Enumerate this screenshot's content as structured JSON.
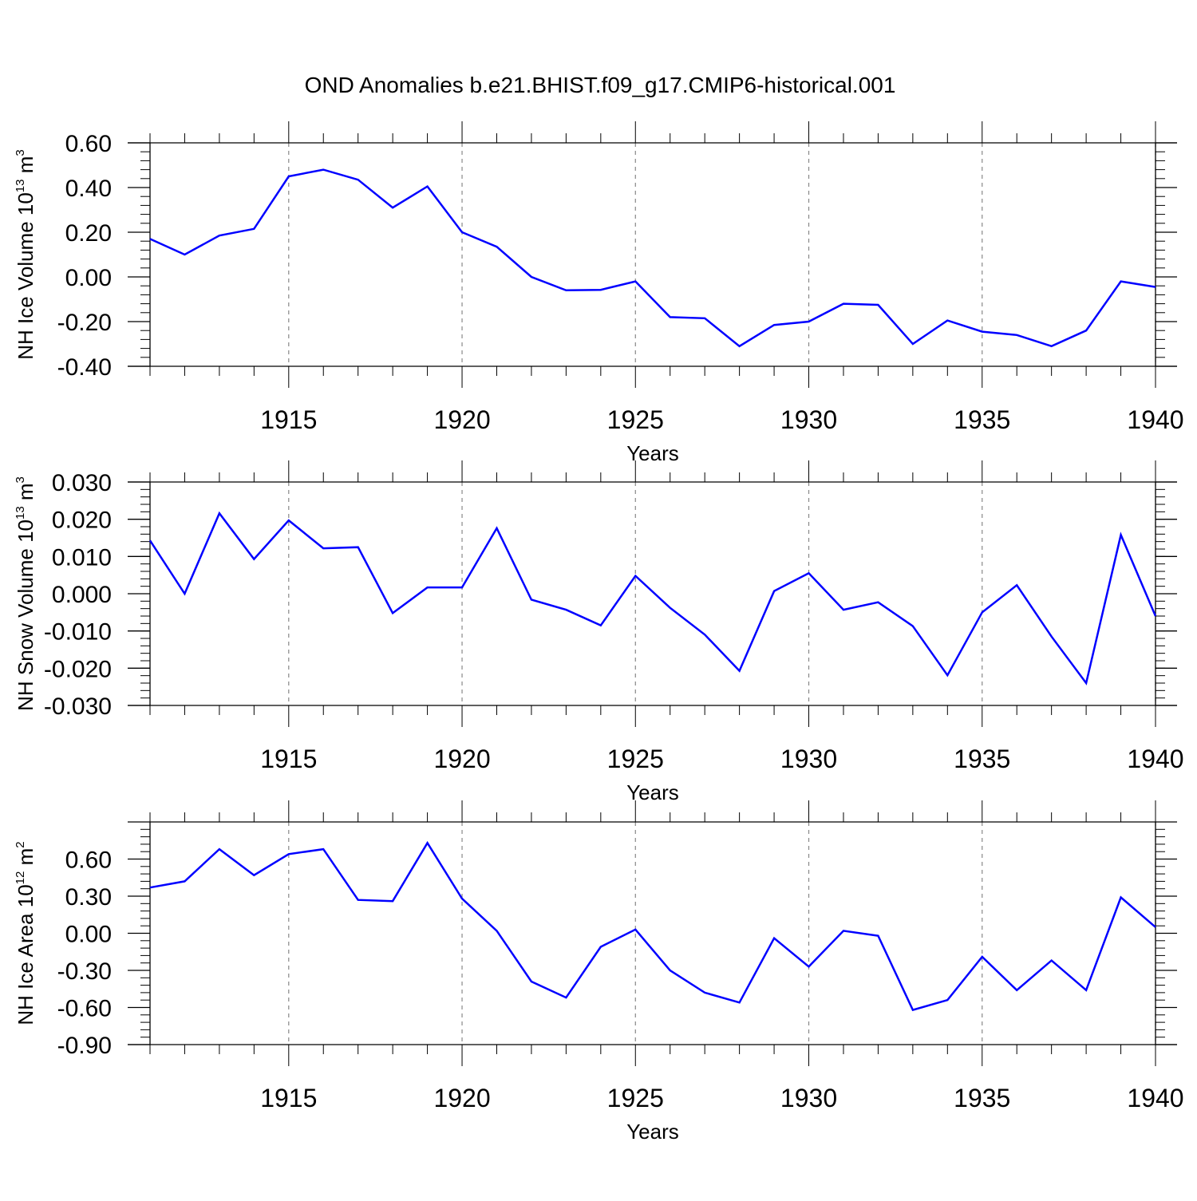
{
  "title": "OND Anomalies b.e21.BHIST.f09_g17.CMIP6-historical.001",
  "colors": {
    "series_line": "#0000ff",
    "axes": "#000000",
    "grid": "#888888"
  },
  "chart_data": [
    {
      "type": "line",
      "ylabel_prefix": "NH Ice Volume 10",
      "ylabel_exp": "13",
      "ylabel_unit": " m",
      "ylabel_unit_exp": "3",
      "xlabel": "Years",
      "xlim": [
        1911,
        1940
      ],
      "ylim": [
        -0.4,
        0.6
      ],
      "yticks": [
        "0.60",
        "0.40",
        "0.20",
        "0.00",
        "-0.20",
        "-0.40"
      ],
      "ytick_values": [
        0.6,
        0.4,
        0.2,
        0.0,
        -0.2,
        -0.4
      ],
      "xticks": [
        "1915",
        "1920",
        "1925",
        "1930",
        "1935",
        "1940"
      ],
      "xtick_values": [
        1915,
        1920,
        1925,
        1930,
        1935,
        1940
      ],
      "grid": "vertical dashed at labeled years",
      "x": [
        1911,
        1912,
        1913,
        1914,
        1915,
        1916,
        1917,
        1918,
        1919,
        1920,
        1921,
        1922,
        1923,
        1924,
        1925,
        1926,
        1927,
        1928,
        1929,
        1930,
        1931,
        1932,
        1933,
        1934,
        1935,
        1936,
        1937,
        1938,
        1939,
        1940
      ],
      "values": [
        0.17,
        0.1,
        0.185,
        0.215,
        0.45,
        0.48,
        0.435,
        0.31,
        0.405,
        0.2,
        0.135,
        0.0,
        -0.06,
        -0.058,
        -0.02,
        -0.18,
        -0.185,
        -0.31,
        -0.215,
        -0.2,
        -0.12,
        -0.125,
        -0.3,
        -0.195,
        -0.245,
        -0.26,
        -0.31,
        -0.24,
        -0.02,
        -0.045
      ]
    },
    {
      "type": "line",
      "ylabel_prefix": "NH Snow Volume 10",
      "ylabel_exp": "13",
      "ylabel_unit": " m",
      "ylabel_unit_exp": "3",
      "xlabel": "Years",
      "xlim": [
        1911,
        1940
      ],
      "ylim": [
        -0.03,
        0.03
      ],
      "yticks": [
        "0.030",
        "0.020",
        "0.010",
        "0.000",
        "-0.010",
        "-0.020",
        "-0.030"
      ],
      "ytick_values": [
        0.03,
        0.02,
        0.01,
        0.0,
        -0.01,
        -0.02,
        -0.03
      ],
      "xticks": [
        "1915",
        "1920",
        "1925",
        "1930",
        "1935",
        "1940"
      ],
      "xtick_values": [
        1915,
        1920,
        1925,
        1930,
        1935,
        1940
      ],
      "grid": "vertical dashed at labeled years",
      "x": [
        1911,
        1912,
        1913,
        1914,
        1915,
        1916,
        1917,
        1918,
        1919,
        1920,
        1921,
        1922,
        1923,
        1924,
        1925,
        1926,
        1927,
        1928,
        1929,
        1930,
        1931,
        1932,
        1933,
        1934,
        1935,
        1936,
        1937,
        1938,
        1939,
        1940
      ],
      "values": [
        0.0143,
        0.0,
        0.0216,
        0.0093,
        0.0197,
        0.0122,
        0.0125,
        -0.0052,
        0.0017,
        0.0017,
        0.0176,
        -0.0016,
        -0.0043,
        -0.0085,
        0.0048,
        -0.0038,
        -0.011,
        -0.0207,
        0.0007,
        0.0055,
        -0.0043,
        -0.0023,
        -0.0087,
        -0.0219,
        -0.005,
        0.0023,
        -0.0115,
        -0.024,
        0.0158,
        -0.006
      ]
    },
    {
      "type": "line",
      "ylabel_prefix": "NH Ice Area 10",
      "ylabel_exp": "12",
      "ylabel_unit": " m",
      "ylabel_unit_exp": "2",
      "xlabel": "Years",
      "xlim": [
        1911,
        1940
      ],
      "ylim": [
        -0.9,
        0.9
      ],
      "yticks": [
        "0.60",
        "0.30",
        "0.00",
        "-0.30",
        "-0.60",
        "-0.90"
      ],
      "ytick_values": [
        0.6,
        0.3,
        0.0,
        -0.3,
        -0.6,
        -0.9
      ],
      "xticks": [
        "1915",
        "1920",
        "1925",
        "1930",
        "1935",
        "1940"
      ],
      "xtick_values": [
        1915,
        1920,
        1925,
        1930,
        1935,
        1940
      ],
      "grid": "vertical dashed at labeled years",
      "x": [
        1911,
        1912,
        1913,
        1914,
        1915,
        1916,
        1917,
        1918,
        1919,
        1920,
        1921,
        1922,
        1923,
        1924,
        1925,
        1926,
        1927,
        1928,
        1929,
        1930,
        1931,
        1932,
        1933,
        1934,
        1935,
        1936,
        1937,
        1938,
        1939,
        1940
      ],
      "values": [
        0.37,
        0.42,
        0.68,
        0.47,
        0.64,
        0.68,
        0.27,
        0.26,
        0.73,
        0.28,
        0.02,
        -0.39,
        -0.52,
        -0.11,
        0.03,
        -0.3,
        -0.48,
        -0.56,
        -0.04,
        -0.27,
        0.02,
        -0.02,
        -0.62,
        -0.54,
        -0.19,
        -0.46,
        -0.22,
        -0.46,
        0.29,
        0.05
      ]
    }
  ]
}
